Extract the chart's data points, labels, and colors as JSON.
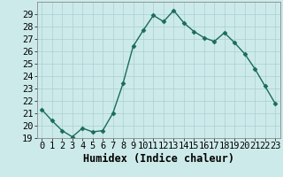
{
  "x": [
    0,
    1,
    2,
    3,
    4,
    5,
    6,
    7,
    8,
    9,
    10,
    11,
    12,
    13,
    14,
    15,
    16,
    17,
    18,
    19,
    20,
    21,
    22,
    23
  ],
  "y": [
    21.3,
    20.4,
    19.6,
    19.1,
    19.8,
    19.5,
    19.6,
    21.0,
    23.4,
    26.4,
    27.7,
    28.9,
    28.4,
    29.3,
    28.3,
    27.6,
    27.1,
    26.8,
    27.5,
    26.7,
    25.8,
    24.6,
    23.2,
    21.8
  ],
  "xlabel": "Humidex (Indice chaleur)",
  "ylim": [
    19,
    30
  ],
  "xlim": [
    -0.5,
    23.5
  ],
  "bg_color": "#cdeaea",
  "grid_color": "#aacfcf",
  "line_color": "#1a6b5a",
  "marker_color": "#1a6b5a",
  "yticks": [
    19,
    20,
    21,
    22,
    23,
    24,
    25,
    26,
    27,
    28,
    29
  ],
  "xticks": [
    0,
    1,
    2,
    3,
    4,
    5,
    6,
    7,
    8,
    9,
    10,
    11,
    12,
    13,
    14,
    15,
    16,
    17,
    18,
    19,
    20,
    21,
    22,
    23
  ],
  "tick_fontsize": 7.5,
  "xlabel_fontsize": 8.5
}
